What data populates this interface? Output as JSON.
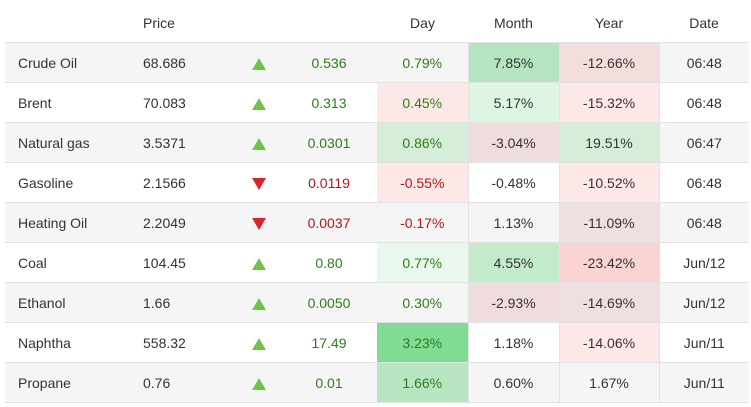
{
  "headers": {
    "name": "",
    "price": "Price",
    "arrow": "",
    "change": "",
    "day": "Day",
    "month": "Month",
    "year": "Year",
    "date": "Date"
  },
  "rows": [
    {
      "name": "Crude Oil",
      "price": "68.686",
      "direction": "up",
      "change": "0.536",
      "day": "0.79%",
      "month": "7.85%",
      "year": "-12.66%",
      "date": "06:48",
      "colors": {
        "day": "",
        "month": "#b4e4c0",
        "year": "#f3dede"
      }
    },
    {
      "name": "Brent",
      "price": "70.083",
      "direction": "up",
      "change": "0.313",
      "day": "0.45%",
      "month": "5.17%",
      "year": "-15.32%",
      "date": "06:48",
      "colors": {
        "day": "#fde8e8",
        "month": "#def5e3",
        "year": "#fde8e8"
      }
    },
    {
      "name": "Natural gas",
      "price": "3.5371",
      "direction": "up",
      "change": "0.0301",
      "day": "0.86%",
      "month": "-3.04%",
      "year": "19.51%",
      "date": "06:47",
      "colors": {
        "day": "#d5edd9",
        "month": "#efdcdc",
        "year": "#d5edd9"
      }
    },
    {
      "name": "Gasoline",
      "price": "2.1566",
      "direction": "down",
      "change": "0.0119",
      "day": "-0.55%",
      "month": "-0.48%",
      "year": "-10.52%",
      "date": "06:48",
      "colors": {
        "day": "#fde8e8",
        "month": "",
        "year": "#fde8e8"
      }
    },
    {
      "name": "Heating Oil",
      "price": "2.2049",
      "direction": "down",
      "change": "0.0037",
      "day": "-0.17%",
      "month": "1.13%",
      "year": "-11.09%",
      "date": "06:48",
      "colors": {
        "day": "",
        "month": "",
        "year": "#f0dfdf"
      }
    },
    {
      "name": "Coal",
      "price": "104.45",
      "direction": "up",
      "change": "0.80",
      "day": "0.77%",
      "month": "4.55%",
      "year": "-23.42%",
      "date": "Jun/12",
      "colors": {
        "day": "#e9f7ec",
        "month": "#c3ebcb",
        "year": "#fad3d3"
      }
    },
    {
      "name": "Ethanol",
      "price": "1.66",
      "direction": "up",
      "change": "0.0050",
      "day": "0.30%",
      "month": "-2.93%",
      "year": "-14.69%",
      "date": "Jun/12",
      "colors": {
        "day": "",
        "month": "#efdcdc",
        "year": "#f0dfdf"
      }
    },
    {
      "name": "Naphtha",
      "price": "558.32",
      "direction": "up",
      "change": "17.49",
      "day": "3.23%",
      "month": "1.18%",
      "year": "-14.06%",
      "date": "Jun/11",
      "colors": {
        "day": "#7fdc92",
        "month": "",
        "year": "#fde8e8"
      }
    },
    {
      "name": "Propane",
      "price": "0.76",
      "direction": "up",
      "change": "0.01",
      "day": "1.66%",
      "month": "0.60%",
      "year": "1.67%",
      "date": "Jun/11",
      "colors": {
        "day": "#b8e6c2",
        "month": "",
        "year": ""
      }
    }
  ]
}
